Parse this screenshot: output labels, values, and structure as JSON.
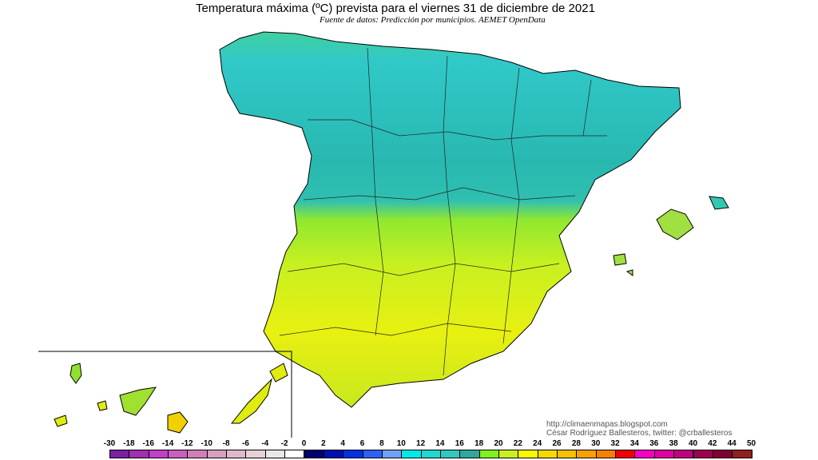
{
  "title": "Temperatura máxima (ºC) prevista para el viernes 31 de diciembre de 2021",
  "subtitle": "Fuente de datos: Predicción por municipios. AEMET OpenData",
  "credits": {
    "url": "http://climaenmapas.blogspot.com",
    "author": "César Rodríguez Ballesteros, twitter: @crballesteros"
  },
  "legend": {
    "labels": [
      "-30",
      "-18",
      "-16",
      "-14",
      "-12",
      "-10",
      "-8",
      "-6",
      "-4",
      "-2",
      "0",
      "2",
      "4",
      "6",
      "8",
      "10",
      "12",
      "14",
      "16",
      "18",
      "20",
      "22",
      "24",
      "26",
      "28",
      "30",
      "32",
      "34",
      "36",
      "38",
      "40",
      "42",
      "44",
      "50"
    ],
    "colors": [
      "#7a1fa0",
      "#a030b0",
      "#c040c8",
      "#c860c0",
      "#d080b8",
      "#d8a0c0",
      "#e0b8cc",
      "#e8d0d8",
      "#e8e8e8",
      "#ffffff",
      "#000070",
      "#0010b0",
      "#0030e0",
      "#3060f0",
      "#70a0f8",
      "#00e8e8",
      "#20d8d0",
      "#30c8c0",
      "#30a8a0",
      "#80f020",
      "#c8f020",
      "#f8f800",
      "#f8d800",
      "#f8c000",
      "#f8a000",
      "#f88000",
      "#f00000",
      "#f800c0",
      "#e000a0",
      "#c00080",
      "#a00050",
      "#800030",
      "#902020"
    ]
  }
}
